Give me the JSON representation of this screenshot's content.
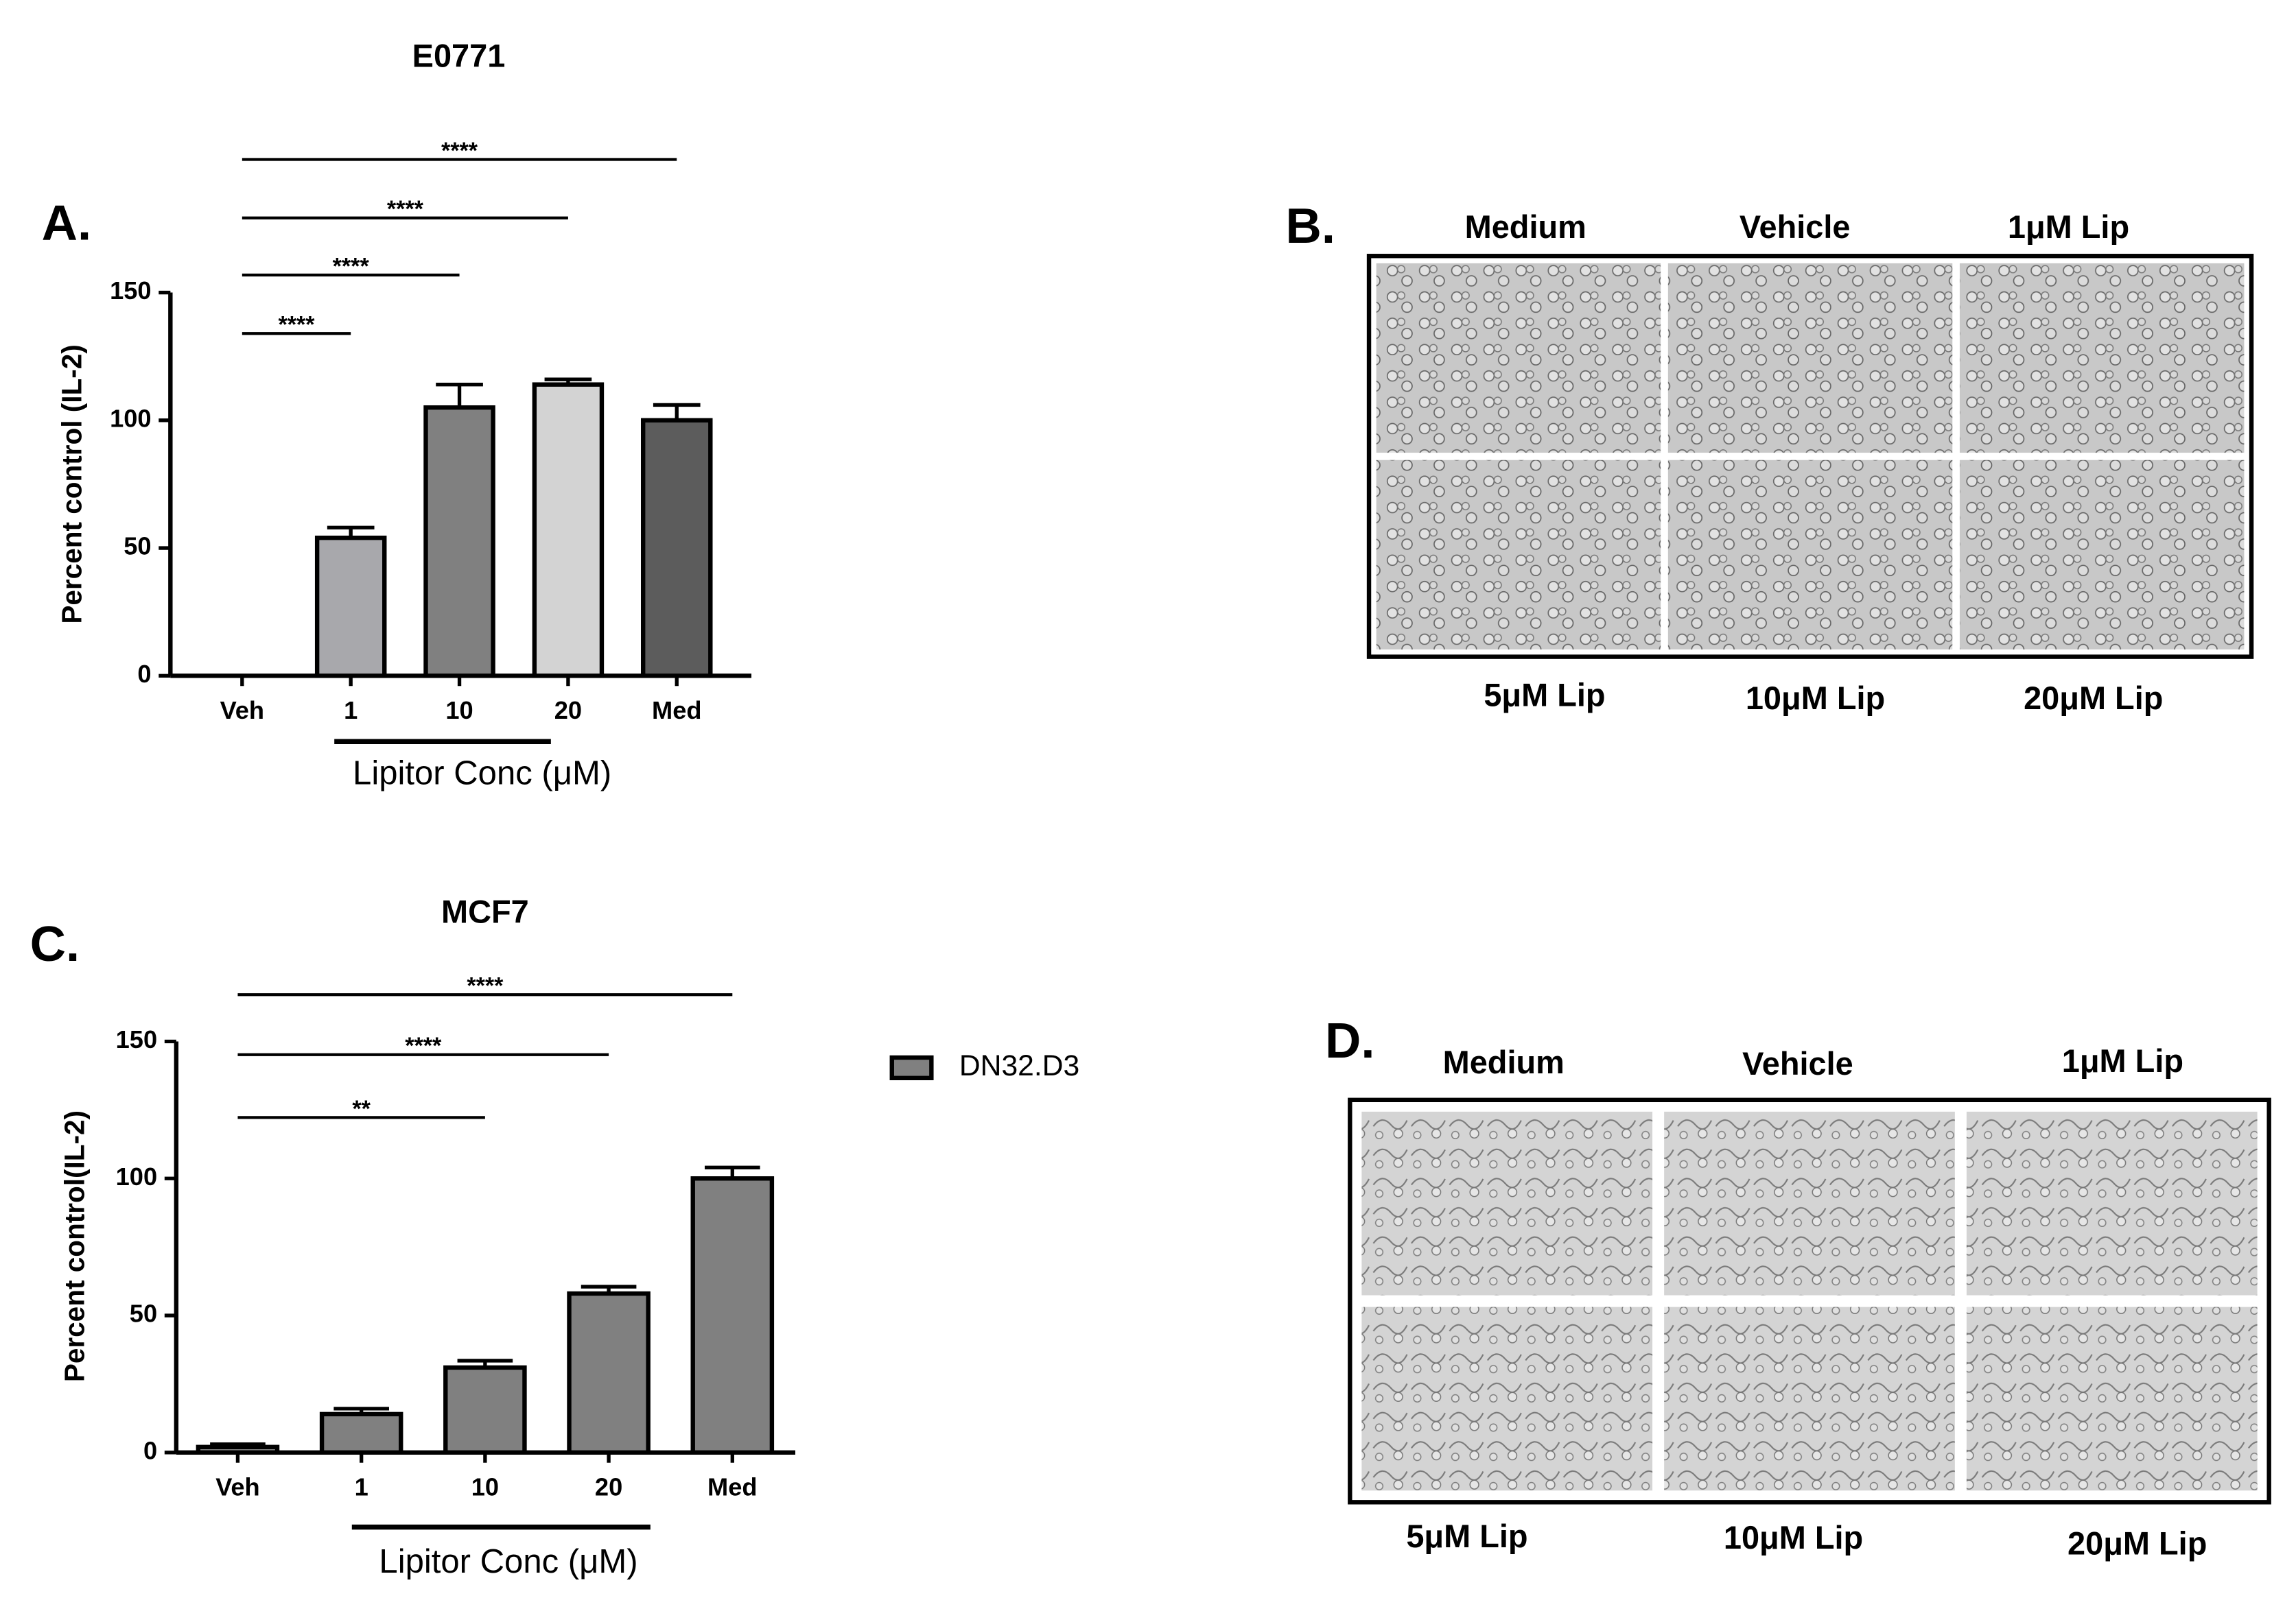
{
  "chart_data": [
    {
      "type": "bar",
      "panel_label": "A.",
      "title": "E0771",
      "y_label": "Percent control (IL-2)",
      "x_label": "Lipitor Conc (μM)",
      "categories": [
        "Veh",
        "1",
        "10",
        "20",
        "Med"
      ],
      "values": [
        0,
        54,
        105,
        114,
        100
      ],
      "errors": [
        null,
        4,
        9,
        2,
        6
      ],
      "colors": [
        "#808080",
        "#a8a8ac",
        "#808080",
        "#d3d3d3",
        "#5c5c5c"
      ],
      "ylim": [
        0,
        150
      ],
      "yticks": [
        0,
        50,
        100,
        150
      ],
      "significance": [
        {
          "label": "****",
          "categories": [
            "Veh",
            "1"
          ]
        },
        {
          "label": "****",
          "categories": [
            "Veh",
            "10"
          ]
        },
        {
          "label": "****",
          "categories": [
            "Veh",
            "20"
          ]
        },
        {
          "label": "****",
          "categories": [
            "Veh",
            "Med"
          ]
        }
      ]
    },
    {
      "type": "bar",
      "panel_label": "C.",
      "title": "MCF7",
      "y_label": "Percent control(IL-2)",
      "x_label": "Lipitor Conc (μM)",
      "categories": [
        "Veh",
        "1",
        "10",
        "20",
        "Med"
      ],
      "series": [
        {
          "name": "DN32.D3",
          "color": "#808080",
          "values": [
            2,
            14,
            31,
            58,
            100
          ],
          "errors": [
            1,
            2,
            2.5,
            2.5,
            4
          ]
        }
      ],
      "ylim": [
        0,
        150
      ],
      "yticks": [
        0,
        50,
        100,
        150
      ],
      "significance": [
        {
          "label": "**",
          "categories": [
            "Veh",
            "10"
          ]
        },
        {
          "label": "****",
          "categories": [
            "Veh",
            "20"
          ]
        },
        {
          "label": "****",
          "categories": [
            "Veh",
            "Med"
          ]
        }
      ]
    }
  ],
  "figure": {
    "panels": [
      {
        "label": "B.",
        "top_labels": [
          "Medium",
          "Vehicle",
          "1μM Lip"
        ],
        "bottom_labels": [
          "5μM Lip",
          "10μM Lip",
          "20μM Lip"
        ]
      },
      {
        "label": "D.",
        "top_labels": [
          "Medium",
          "Vehicle",
          "1μM Lip"
        ],
        "bottom_labels": [
          "5μM Lip",
          "10μM Lip",
          "20μM Lip"
        ]
      }
    ]
  }
}
